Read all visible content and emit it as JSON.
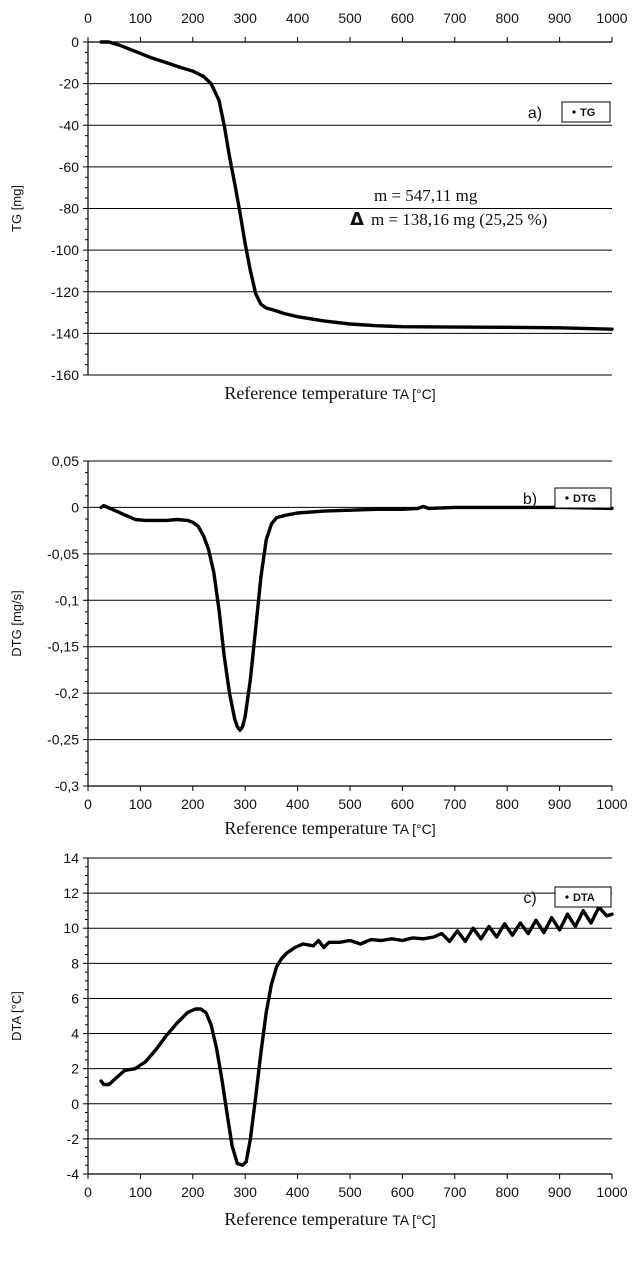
{
  "chart_data": [
    {
      "type": "line",
      "panel": "a)",
      "ylabel": "TG [mg]",
      "xlabel": "Reference temperature",
      "xlabel_unit": "TA [°C]",
      "x_axis_position": "top",
      "xlim": [
        0,
        1000
      ],
      "ylim": [
        -160,
        0
      ],
      "xticks": [
        0,
        100,
        200,
        300,
        400,
        500,
        600,
        700,
        800,
        900,
        1000
      ],
      "yticks": [
        0,
        -20,
        -40,
        -60,
        -80,
        -100,
        -120,
        -140,
        -160
      ],
      "yticklabels": [
        "0",
        "-20",
        "-40",
        "-60",
        "-80",
        "-100",
        "-120",
        "-140",
        "-160"
      ],
      "grid": "horizontal",
      "legend_placement": "top-right",
      "annotations": [
        "m = 547,11 mg",
        "m = 138,16 mg (25,25 %)"
      ],
      "annotation_symbol": "Δ",
      "series": [
        {
          "name": "TG",
          "x": [
            25,
            40,
            60,
            80,
            100,
            120,
            150,
            180,
            200,
            220,
            235,
            250,
            260,
            270,
            280,
            290,
            300,
            310,
            320,
            330,
            340,
            350,
            375,
            400,
            450,
            500,
            550,
            600,
            700,
            800,
            900,
            1000
          ],
          "y": [
            0,
            0,
            -1.5,
            -3.5,
            -5.5,
            -7.5,
            -10,
            -12.5,
            -14,
            -16.5,
            -20,
            -28,
            -40,
            -55,
            -68,
            -82,
            -97,
            -110,
            -121,
            -126,
            -127.8,
            -128.5,
            -130.5,
            -132,
            -134,
            -135.5,
            -136.3,
            -136.8,
            -137,
            -137.1,
            -137.3,
            -138
          ]
        }
      ]
    },
    {
      "type": "line",
      "panel": "b)",
      "ylabel": "DTG [mg/s]",
      "xlabel": "Reference temperature",
      "xlabel_unit": "TA [°C]",
      "x_axis_position": "bottom",
      "xlim": [
        0,
        1000
      ],
      "ylim": [
        -0.3,
        0.05
      ],
      "xticks": [
        0,
        100,
        200,
        300,
        400,
        500,
        600,
        700,
        800,
        900,
        1000
      ],
      "yticks": [
        0.05,
        0,
        -0.05,
        -0.1,
        -0.15,
        -0.2,
        -0.25,
        -0.3
      ],
      "yticklabels": [
        "0,05",
        "0",
        "-0,05",
        "-0,1",
        "-0,15",
        "-0,2",
        "-0,25",
        "-0,3"
      ],
      "grid": "horizontal",
      "legend_placement": "top-right",
      "series": [
        {
          "name": "DTG",
          "x": [
            25,
            30,
            50,
            70,
            90,
            110,
            130,
            150,
            170,
            190,
            200,
            210,
            220,
            230,
            240,
            250,
            260,
            270,
            280,
            285,
            290,
            295,
            300,
            310,
            320,
            330,
            340,
            350,
            360,
            380,
            400,
            450,
            500,
            550,
            600,
            630,
            640,
            650,
            700,
            800,
            900,
            1000
          ],
          "y": [
            0,
            0.002,
            -0.003,
            -0.008,
            -0.013,
            -0.014,
            -0.014,
            -0.014,
            -0.013,
            -0.014,
            -0.016,
            -0.02,
            -0.03,
            -0.045,
            -0.07,
            -0.11,
            -0.16,
            -0.2,
            -0.228,
            -0.236,
            -0.24,
            -0.236,
            -0.225,
            -0.185,
            -0.13,
            -0.075,
            -0.035,
            -0.018,
            -0.011,
            -0.008,
            -0.006,
            -0.004,
            -0.003,
            -0.002,
            -0.002,
            -0.001,
            0.001,
            -0.001,
            0,
            0,
            0,
            -0.001
          ]
        }
      ]
    },
    {
      "type": "line",
      "panel": "c)",
      "ylabel": "DTA [°C]",
      "xlabel": "Reference temperature",
      "xlabel_unit": "TA [°C]",
      "x_axis_position": "bottom",
      "xlim": [
        0,
        1000
      ],
      "ylim": [
        -4,
        14
      ],
      "xticks": [
        0,
        100,
        200,
        300,
        400,
        500,
        600,
        700,
        800,
        900,
        1000
      ],
      "yticks": [
        14,
        12,
        10,
        8,
        6,
        4,
        2,
        0,
        -2,
        -4
      ],
      "yticklabels": [
        "14",
        "12",
        "10",
        "8",
        "6",
        "4",
        "2",
        "0",
        "-2",
        "-4"
      ],
      "grid": "horizontal",
      "legend_placement": "top-right",
      "series": [
        {
          "name": "DTA",
          "x": [
            25,
            30,
            40,
            55,
            70,
            90,
            110,
            130,
            150,
            170,
            190,
            205,
            215,
            225,
            235,
            245,
            255,
            265,
            275,
            285,
            295,
            302,
            310,
            320,
            330,
            340,
            350,
            360,
            370,
            380,
            395,
            410,
            430,
            440,
            450,
            460,
            480,
            500,
            520,
            540,
            560,
            580,
            600,
            620,
            640,
            660,
            675,
            690,
            705,
            720,
            735,
            750,
            765,
            780,
            795,
            810,
            825,
            840,
            855,
            870,
            885,
            900,
            915,
            930,
            945,
            960,
            975,
            990,
            1000
          ],
          "y": [
            1.3,
            1.1,
            1.1,
            1.5,
            1.9,
            2.0,
            2.4,
            3.1,
            3.9,
            4.6,
            5.2,
            5.4,
            5.4,
            5.2,
            4.5,
            3.2,
            1.5,
            -0.5,
            -2.4,
            -3.4,
            -3.5,
            -3.3,
            -2.0,
            0.4,
            2.9,
            5.2,
            6.8,
            7.8,
            8.3,
            8.6,
            8.9,
            9.1,
            9.0,
            9.3,
            8.9,
            9.2,
            9.2,
            9.3,
            9.1,
            9.35,
            9.3,
            9.4,
            9.3,
            9.45,
            9.4,
            9.5,
            9.7,
            9.25,
            9.85,
            9.25,
            10.0,
            9.4,
            10.1,
            9.5,
            10.25,
            9.6,
            10.3,
            9.7,
            10.45,
            9.75,
            10.6,
            9.9,
            10.8,
            10.1,
            11.0,
            10.3,
            11.2,
            10.7,
            10.8
          ]
        }
      ]
    }
  ]
}
